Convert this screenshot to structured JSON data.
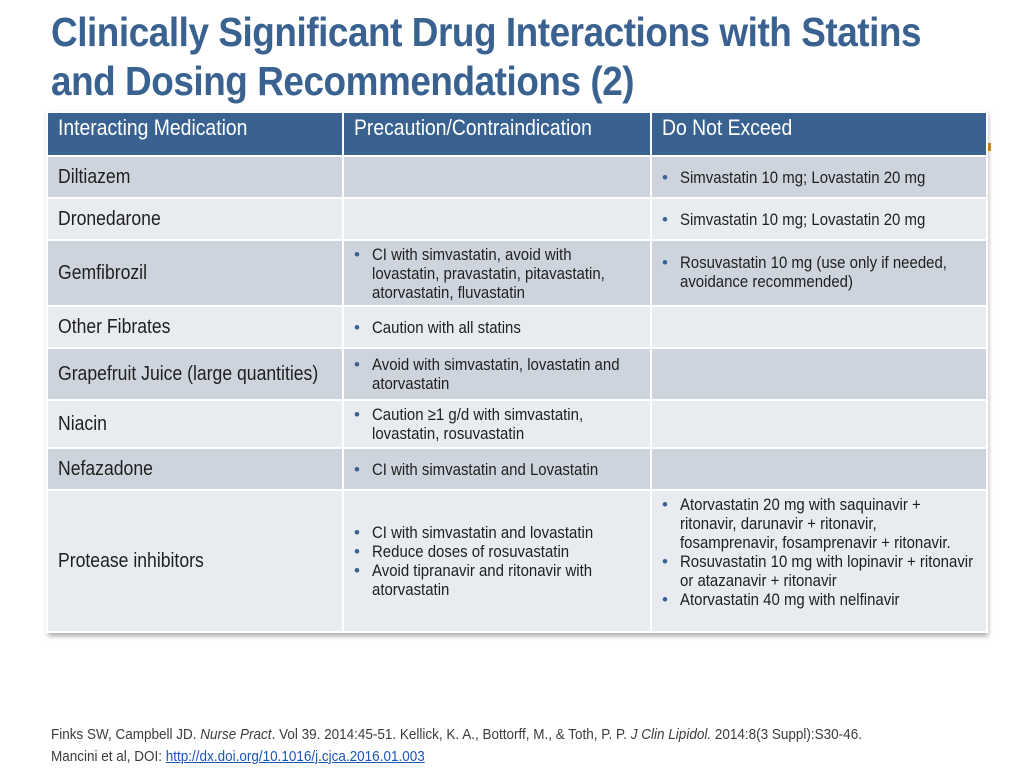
{
  "slide": {
    "title_line1": "Clinically Significant Drug Interactions with Statins",
    "title_line2": "and Dosing Recommendations (2)"
  },
  "table": {
    "headers": [
      "Interacting Medication",
      "Precaution/Contraindication",
      "Do Not Exceed"
    ],
    "rows": [
      {
        "medication": "Diltiazem",
        "precaution": [],
        "do_not_exceed": [
          "Simvastatin 10 mg; Lovastatin 20 mg"
        ]
      },
      {
        "medication": "Dronedarone",
        "precaution": [],
        "do_not_exceed": [
          "Simvastatin 10 mg; Lovastatin 20 mg"
        ]
      },
      {
        "medication": "Gemfibrozil",
        "precaution": [
          "CI with simvastatin, avoid with lovastatin, pravastatin, pitavastatin, atorvastatin, fluvastatin"
        ],
        "do_not_exceed": [
          "Rosuvastatin 10 mg (use only if needed, avoidance recommended)"
        ]
      },
      {
        "medication": "Other Fibrates",
        "precaution": [
          "Caution with all statins"
        ],
        "do_not_exceed": []
      },
      {
        "medication": "Grapefruit Juice (large quantities)",
        "precaution": [
          "Avoid with simvastatin, lovastatin and atorvastatin"
        ],
        "do_not_exceed": []
      },
      {
        "medication": "Niacin",
        "precaution": [
          "Caution ≥1 g/d with simvastatin, lovastatin, rosuvastatin"
        ],
        "do_not_exceed": []
      },
      {
        "medication": "Nefazadone",
        "precaution": [
          "CI with simvastatin and Lovastatin"
        ],
        "do_not_exceed": []
      },
      {
        "medication": "Protease inhibitors",
        "precaution": [
          "CI with simvastatin and lovastatin",
          "Reduce doses of rosuvastatin",
          "Avoid tipranavir and ritonavir with atorvastatin"
        ],
        "do_not_exceed": [
          "Atorvastatin 20 mg with saquinavir + ritonavir, darunavir + ritonavir, fosamprenavir, fosamprenavir + ritonavir.",
          "Rosuvastatin 10 mg with lopinavir + ritonavir or atazanavir + ritonavir",
          "Atorvastatin 40 mg with nelfinavir"
        ]
      }
    ]
  },
  "footer": {
    "line1_a": "Finks SW, Campbell JD. ",
    "line1_journal1": "Nurse Pract",
    "line1_b": ". Vol 39. 2014:45-51. Kellick, K. A., Bottorff, M., & Toth, P. P. ",
    "line1_journal2": "J Clin Lipidol.",
    "line1_c": " 2014:8(3 Suppl):S30-46.",
    "line2_a": "Mancini et al, DOI: ",
    "line2_link": "http://dx.doi.org/10.1016/j.cjca.2016.01.003"
  },
  "colors": {
    "accent": "#3a6290",
    "row_dark": "#ced4de",
    "row_light": "#e8ebf0",
    "link": "#1a55b5"
  }
}
